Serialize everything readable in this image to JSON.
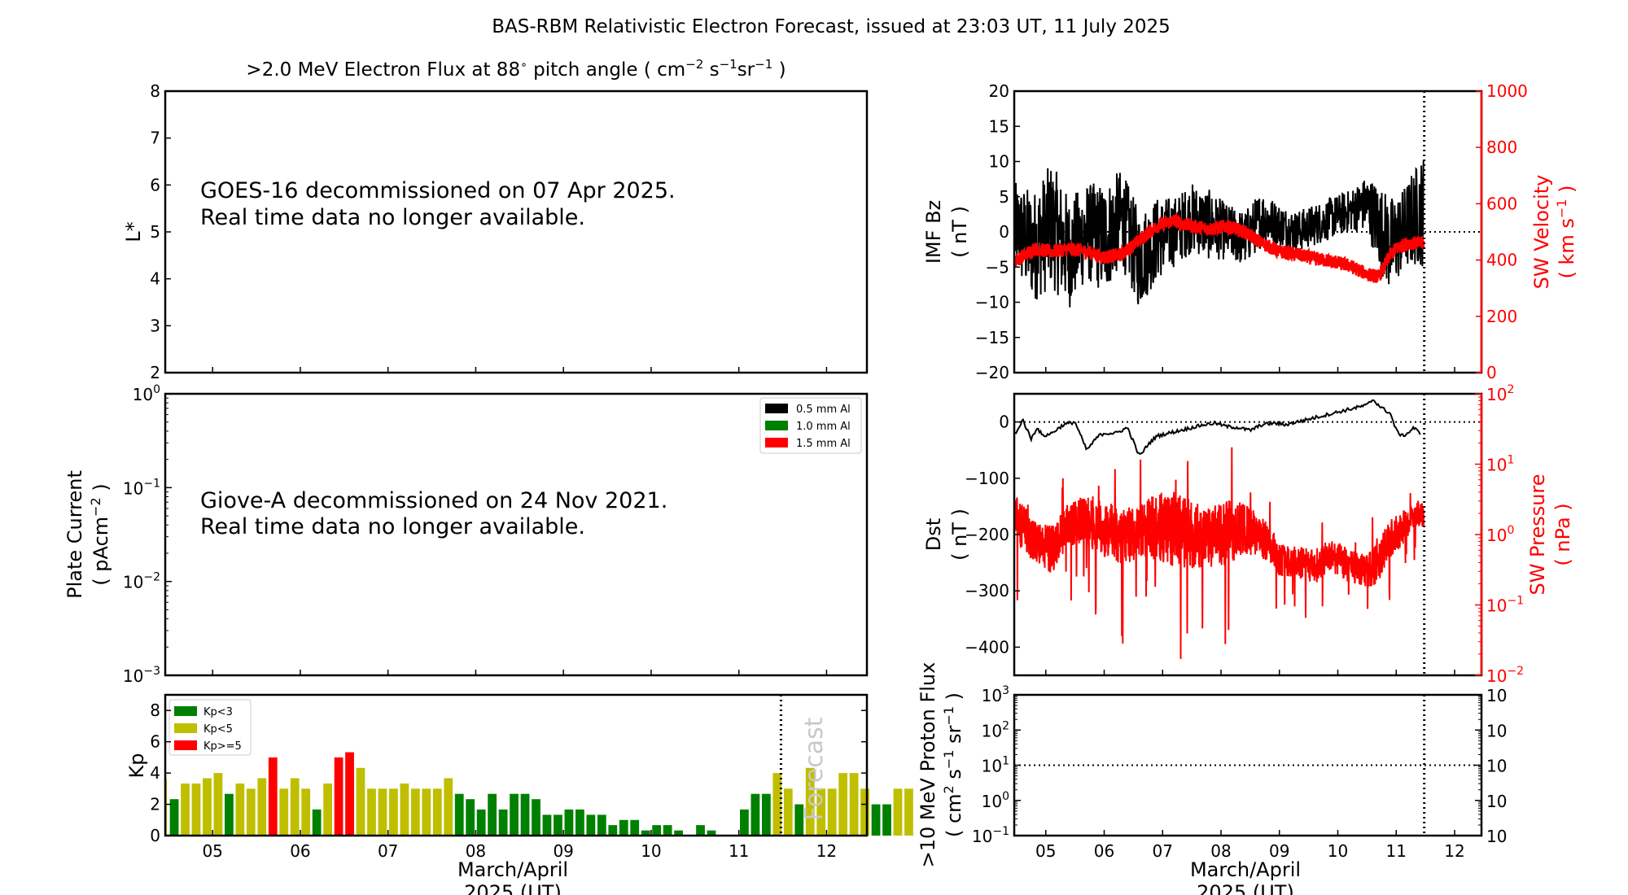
{
  "chart_data": [
    {
      "id": "electron-flux",
      "type": "heatmap",
      "title": ">2.0 MeV Electron Flux at 88° pitch angle ( cm⁻² s⁻¹ sr⁻¹ )",
      "ylabel": "L*",
      "ylim": [
        2,
        8
      ],
      "yticks": [
        "2",
        "3",
        "4",
        "5",
        "6",
        "7",
        "8"
      ],
      "xlim_days": [
        4.46,
        12.46
      ],
      "annotation": [
        "GOES-16 decommissioned on 07 Apr 2025.",
        "Real time data no longer available."
      ]
    },
    {
      "id": "plate-current",
      "type": "line",
      "ylabel": "Plate Current",
      "ylabel_units": "( pAcm⁻² )",
      "yscale": "log",
      "ylim": [
        0.001,
        1
      ],
      "yticks": [
        "10⁻³",
        "10⁻²",
        "10⁻¹",
        "10⁰"
      ],
      "legend": [
        "0.5 mm Al",
        "1.0 mm Al",
        "1.5 mm Al"
      ],
      "legend_colors": [
        "#000000",
        "#008000",
        "#ff0000"
      ],
      "legend_position": "top-right",
      "annotation": [
        "Giove-A decommissioned on 24 Nov 2021.",
        "Real time data no longer available."
      ]
    },
    {
      "id": "kp",
      "type": "bar",
      "ylabel": "Kp",
      "ylim": [
        0,
        9
      ],
      "yticks": [
        "0",
        "2",
        "4",
        "6",
        "8"
      ],
      "xlabel": [
        "March/April",
        "2025 (UT)"
      ],
      "xticks": [
        "05",
        "06",
        "07",
        "08",
        "09",
        "10",
        "11",
        "12"
      ],
      "bin_hours": 3,
      "start_day": 4.5,
      "values": [
        2.33,
        3.33,
        3.33,
        3.67,
        4.0,
        2.67,
        3.33,
        3.0,
        3.67,
        5.0,
        3.0,
        3.67,
        3.0,
        1.67,
        3.33,
        5.0,
        5.33,
        4.33,
        3.0,
        3.0,
        3.0,
        3.33,
        3.0,
        3.0,
        3.0,
        3.67,
        2.67,
        2.33,
        1.67,
        2.67,
        1.67,
        2.67,
        2.67,
        2.33,
        1.33,
        1.33,
        1.67,
        1.67,
        1.33,
        1.33,
        0.67,
        1.0,
        1.0,
        0.33,
        0.67,
        0.67,
        0.33,
        0.0,
        0.67,
        0.33,
        0.0,
        0.0,
        1.67,
        2.67,
        2.67,
        4.0,
        3.0,
        2.0,
        4.33,
        3.0,
        3.0,
        4.0,
        4.0,
        3.0,
        2.0,
        2.0,
        3.0,
        3.0
      ],
      "legend": [
        "Kp<3",
        "Kp<5",
        "Kp>=5"
      ],
      "legend_colors": [
        "#008000",
        "#bfbf00",
        "#ff0000"
      ],
      "legend_position": "top-left",
      "forecast_label": "Forecast",
      "now_day": 11.48
    },
    {
      "id": "imf-sw",
      "type": "line",
      "ylabel": "IMF Bz",
      "ylabel_units": "( nT )",
      "ylim": [
        -20,
        20
      ],
      "yticks": [
        "−20",
        "−15",
        "−10",
        "−5",
        "0",
        "5",
        "10",
        "15",
        "20"
      ],
      "y2label": "SW Velocity",
      "y2label_units": "( km s⁻¹ )",
      "y2lim": [
        0,
        1000
      ],
      "y2ticks": [
        "0",
        "200",
        "400",
        "600",
        "800",
        "1000"
      ],
      "series": [
        {
          "name": "IMF Bz",
          "color": "#000000",
          "x": [
            4.5,
            4.8,
            5.1,
            5.4,
            5.7,
            6.0,
            6.3,
            6.6,
            6.9,
            7.2,
            7.5,
            7.8,
            8.1,
            8.4,
            8.7,
            9.0,
            9.3,
            9.6,
            9.9,
            10.2,
            10.5,
            10.7,
            10.9,
            11.1,
            11.3,
            11.45
          ],
          "y": [
            0,
            -2,
            1,
            -3,
            0,
            -1,
            2,
            -4,
            -1,
            0,
            2,
            1,
            0,
            -1,
            2,
            1,
            0,
            1,
            2,
            3,
            4,
            1,
            -2,
            0,
            2,
            3
          ],
          "amplitude": [
            7,
            8,
            9,
            8,
            7,
            8,
            7,
            7,
            6,
            5,
            5,
            5,
            4,
            4,
            4,
            3,
            3,
            3,
            3,
            3,
            4,
            6,
            7,
            6,
            7,
            8
          ]
        },
        {
          "name": "SW Velocity",
          "color": "#ff0000",
          "x": [
            4.5,
            4.8,
            5.1,
            5.4,
            5.7,
            6.0,
            6.3,
            6.6,
            6.9,
            7.2,
            7.5,
            7.8,
            8.1,
            8.4,
            8.7,
            9.0,
            9.3,
            9.6,
            9.9,
            10.2,
            10.5,
            10.7,
            10.9,
            11.0,
            11.2,
            11.45
          ],
          "y": [
            400,
            440,
            430,
            440,
            430,
            410,
            420,
            470,
            520,
            540,
            520,
            510,
            520,
            500,
            460,
            430,
            420,
            405,
            395,
            380,
            350,
            340,
            420,
            440,
            460,
            460
          ]
        }
      ],
      "zero_line": 0,
      "now_day": 11.48
    },
    {
      "id": "dst-pressure",
      "type": "line",
      "ylabel": "Dst",
      "ylabel_units": "( nT )",
      "ylim": [
        -450,
        50
      ],
      "yticks": [
        "−400",
        "−300",
        "−200",
        "−100",
        "0"
      ],
      "y2label": "SW Pressure",
      "y2label_units": "( nPa )",
      "y2scale": "log",
      "y2lim": [
        0.01,
        100
      ],
      "y2ticks": [
        "10⁻²",
        "10⁻¹",
        "10⁰",
        "10¹",
        "10²"
      ],
      "series": [
        {
          "name": "Dst",
          "color": "#000000",
          "x": [
            4.5,
            4.6,
            4.75,
            4.85,
            4.95,
            5.1,
            5.3,
            5.5,
            5.7,
            5.9,
            6.0,
            6.2,
            6.4,
            6.6,
            6.65,
            6.75,
            6.9,
            7.1,
            7.3,
            7.5,
            7.7,
            7.9,
            8.1,
            8.3,
            8.5,
            8.7,
            8.9,
            9.1,
            9.3,
            9.5,
            9.7,
            9.9,
            10.1,
            10.3,
            10.5,
            10.6,
            10.75,
            10.9,
            11.0,
            11.1,
            11.2,
            11.3,
            11.4
          ],
          "y": [
            -20,
            5,
            -30,
            -10,
            -25,
            -20,
            -5,
            0,
            -50,
            -25,
            -20,
            -20,
            -10,
            -60,
            -55,
            -40,
            -25,
            -20,
            -15,
            -10,
            -5,
            -2,
            -8,
            -10,
            -15,
            -5,
            -2,
            -5,
            0,
            5,
            10,
            15,
            20,
            25,
            30,
            40,
            25,
            15,
            -15,
            -25,
            -20,
            -10,
            -20
          ]
        },
        {
          "name": "SW Pressure",
          "color": "#ff0000",
          "x": [
            4.5,
            4.8,
            5.1,
            5.4,
            5.7,
            6.0,
            6.3,
            6.6,
            6.9,
            7.2,
            7.5,
            7.8,
            8.1,
            8.4,
            8.7,
            9.0,
            9.3,
            9.6,
            9.9,
            10.2,
            10.5,
            10.7,
            10.9,
            11.1,
            11.3,
            11.45
          ],
          "y": [
            1.5,
            0.8,
            0.6,
            1.4,
            1.6,
            1.2,
            0.9,
            1.1,
            1.3,
            1.2,
            1.0,
            0.9,
            1.1,
            1.2,
            0.9,
            0.45,
            0.4,
            0.35,
            0.5,
            0.35,
            0.3,
            0.4,
            0.8,
            1.2,
            1.8,
            2.0
          ],
          "amplitude_decades": [
            0.6,
            0.5,
            0.6,
            0.5,
            0.6,
            0.7,
            0.7,
            0.6,
            0.8,
            0.9,
            0.8,
            0.7,
            0.8,
            0.6,
            0.5,
            0.4,
            0.4,
            0.4,
            0.4,
            0.4,
            0.4,
            0.5,
            0.5,
            0.4,
            0.3,
            0.3
          ]
        }
      ],
      "zero_line": 0,
      "now_day": 11.48
    },
    {
      "id": "proton-flux",
      "type": "line",
      "ylabel": ">10 MeV Proton Flux",
      "ylabel_units": "( cm² s⁻¹ sr⁻¹ )",
      "yscale": "log",
      "ylim": [
        0.1,
        1000
      ],
      "yticks": [
        "10⁻¹",
        "10⁰",
        "10¹",
        "10²",
        "10³"
      ],
      "threshold": 10,
      "xlabel": [
        "March/April",
        "2025 (UT)"
      ],
      "xticks": [
        "05",
        "06",
        "07",
        "08",
        "09",
        "10",
        "11",
        "12"
      ],
      "now_day": 11.48
    }
  ],
  "page": {
    "title": "BAS-RBM Relativistic Electron Forecast, issued at 23:03 UT, 11 July 2025"
  }
}
